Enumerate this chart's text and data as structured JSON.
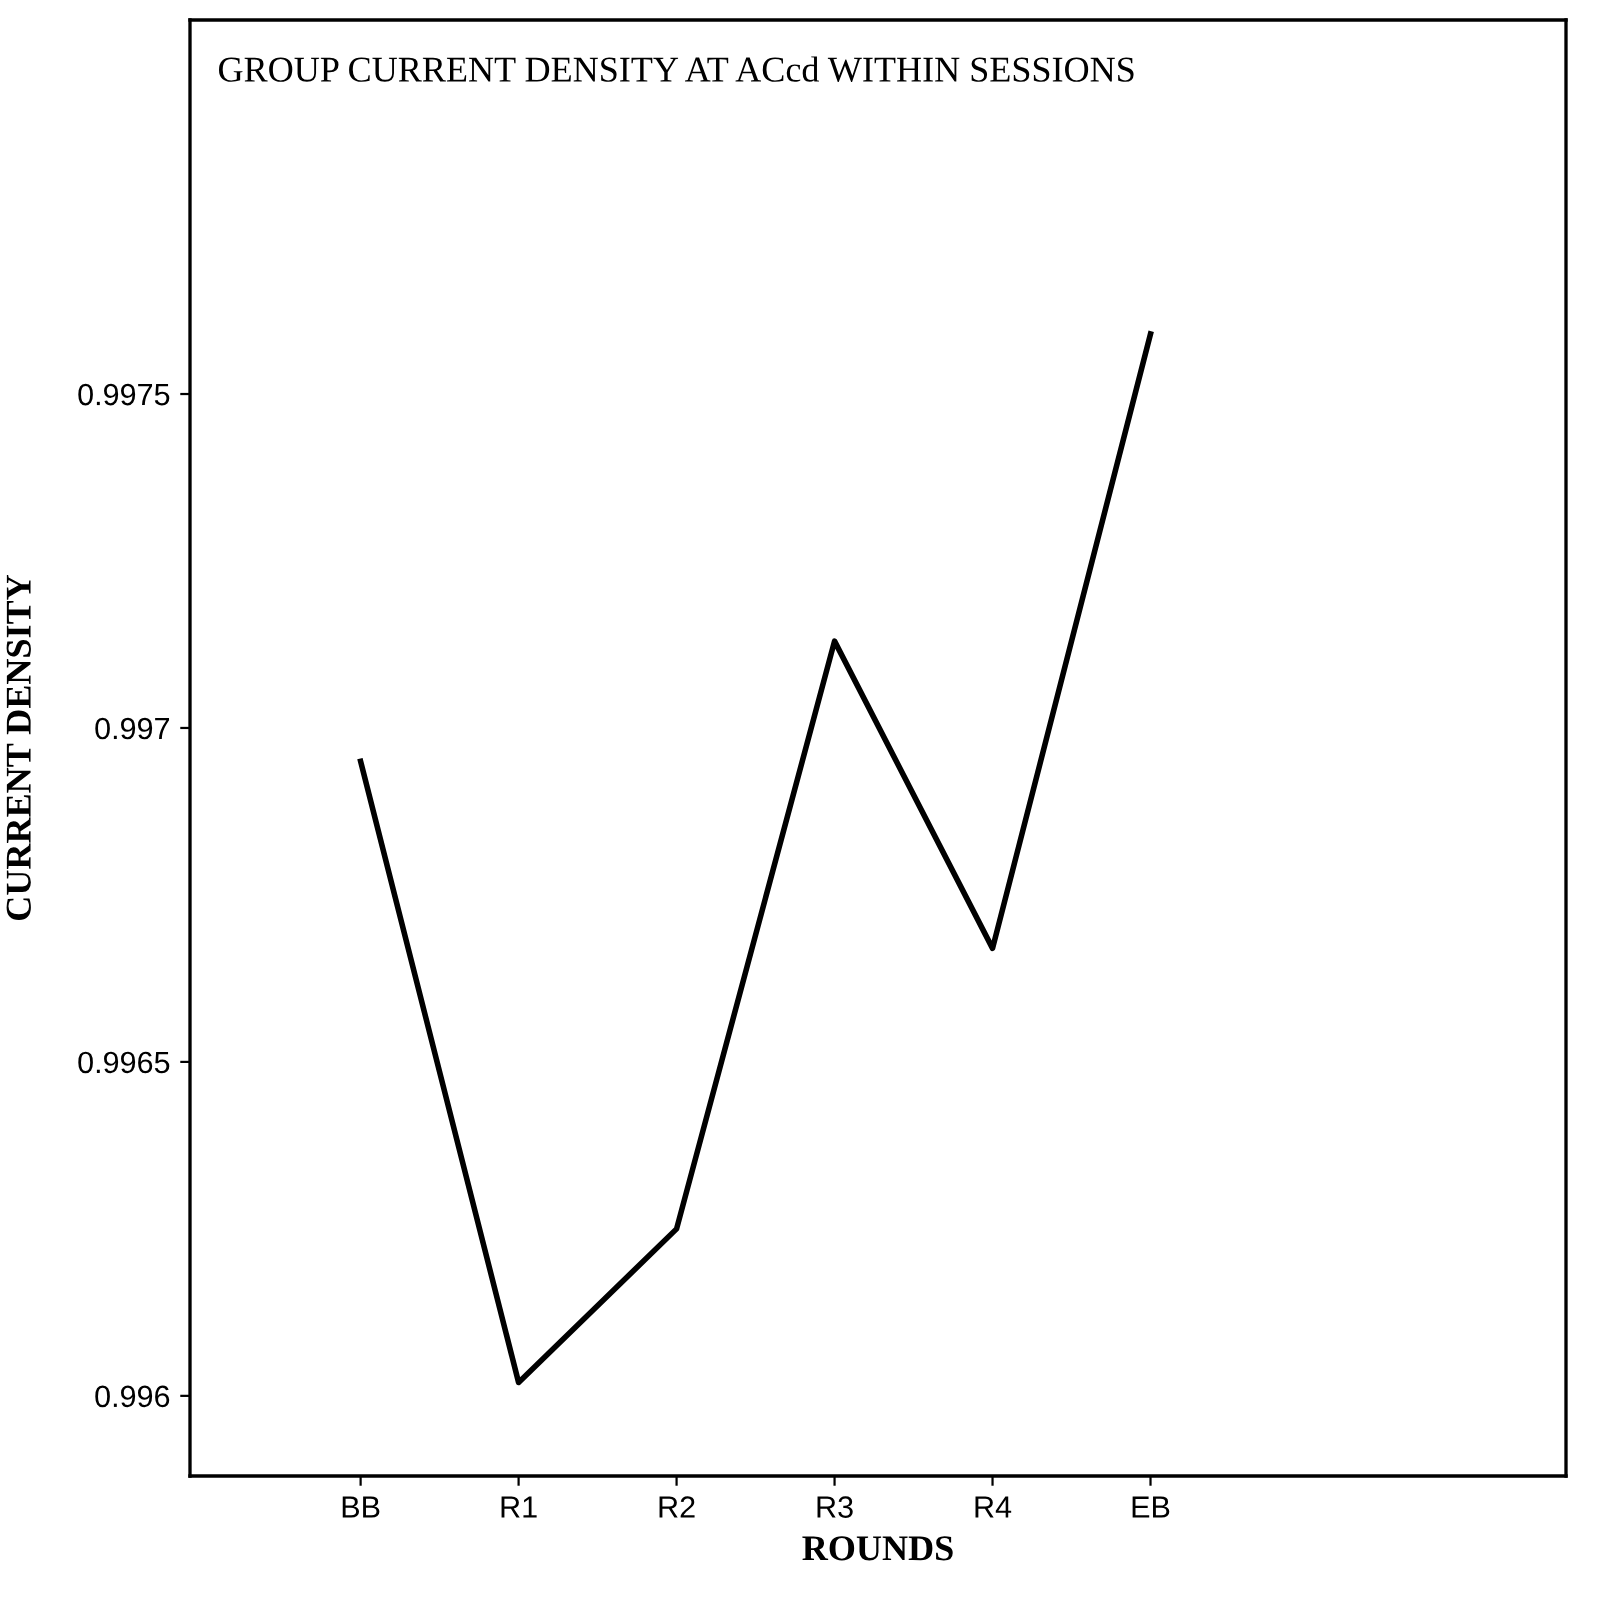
{
  "chart_data": {
    "type": "line",
    "title": "GROUP CURRENT DENSITY AT ACcd WITHIN SESSIONS",
    "xlabel": "ROUNDS",
    "ylabel": "CURRENT DENSITY",
    "categories": [
      "BB",
      "R1",
      "R2",
      "R3",
      "R4",
      "EB"
    ],
    "series": [
      {
        "color": "#000000",
        "values": [
          0.99695,
          0.99602,
          0.99625,
          0.99713,
          0.99667,
          0.99759
        ]
      }
    ],
    "ylim": [
      0.99588,
      0.99806
    ],
    "yticks": [
      {
        "value": 0.996,
        "label": "0.996"
      },
      {
        "value": 0.9965,
        "label": "0.9965"
      },
      {
        "value": 0.997,
        "label": "0.997"
      },
      {
        "value": 0.9975,
        "label": "0.9975"
      }
    ],
    "grid": false,
    "legend": false,
    "marker": "none",
    "line_style": "solid"
  }
}
